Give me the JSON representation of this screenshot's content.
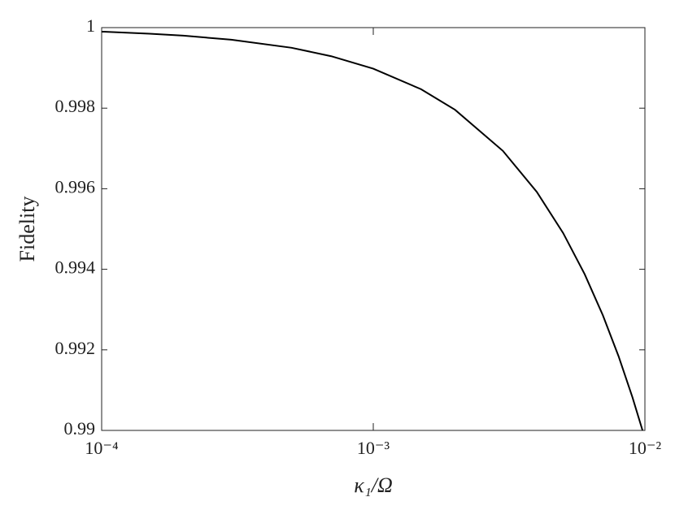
{
  "chart_data": {
    "type": "line",
    "x_label": "κ₁/Ω",
    "y_label": "Fidelity",
    "x_scale": "log",
    "x": [
      0.0001,
      0.00015,
      0.0002,
      0.0003,
      0.0005,
      0.0007,
      0.001,
      0.0015,
      0.002,
      0.003,
      0.004,
      0.005,
      0.006,
      0.007,
      0.008,
      0.009,
      0.0098
    ],
    "series": [
      {
        "color": "#000000",
        "values": [
          0.9999,
          0.99985,
          0.9998,
          0.9997,
          0.9995,
          0.99929,
          0.99898,
          0.99847,
          0.99796,
          0.99694,
          0.99592,
          0.9949,
          0.99388,
          0.99286,
          0.99184,
          0.99082,
          0.99
        ]
      }
    ],
    "xlim": [
      0.0001,
      0.01
    ],
    "xticks": [
      {
        "value": 0.0001,
        "label": "10⁻⁴"
      },
      {
        "value": 0.001,
        "label": "10⁻³"
      },
      {
        "value": 0.01,
        "label": "10⁻²"
      }
    ],
    "ylim": [
      0.99,
      1
    ],
    "yticks": [
      0.99,
      0.992,
      0.994,
      0.996,
      0.998,
      1
    ],
    "grid": false
  }
}
